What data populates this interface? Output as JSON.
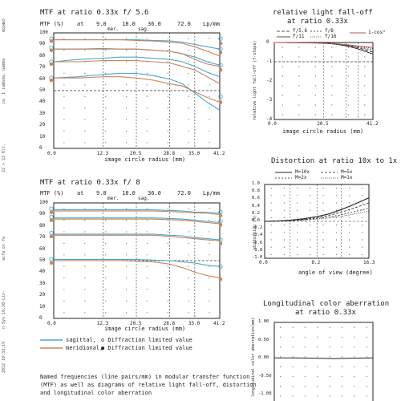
{
  "margin": {
    "top": "ed-",
    "a": "mope",
    "b": "ia. 1 iambda, Gamma",
    "c": "22 > 22 Klr.",
    "d": "acfa on fe",
    "e": "n-Sys 10,20-Lin-",
    "f": "2012 10:33:19"
  },
  "mtf56": {
    "title": "MTF at ratio 0.33x  f/ 5.6",
    "hdr1": "MTF (%)",
    "hdr_at": "at",
    "hdr2": "9.0",
    "hdr3": "18.0",
    "hdr4": "36.0",
    "hdr5": "72.0",
    "hdr6": "Lp/mm",
    "mer": "mer.",
    "sag": "sag.",
    "yticks": [
      "100",
      "90",
      "80",
      "70",
      "60",
      "50",
      "40",
      "30",
      "20",
      "10",
      "0"
    ],
    "xticks": [
      "0.0",
      "12.3",
      "20.5",
      "28.8",
      "35.0",
      "41.2"
    ],
    "xlabel": "image circle radius (mm)"
  },
  "mtf8": {
    "title": "MTF at ratio 0.33x  f/ 8",
    "hdr1": "MTF (%)",
    "hdr_at": "at",
    "hdr2": "9.0",
    "hdr3": "18.0",
    "hdr4": "36.0",
    "hdr5": "72.0",
    "hdr6": "Lp/mm",
    "mer": "mer.",
    "sag": "sag.",
    "yticks": [
      "100",
      "90",
      "80",
      "70",
      "60",
      "50",
      "40",
      "30",
      "20",
      "10",
      "0"
    ],
    "xticks": [
      "0.0",
      "12.3",
      "20.5",
      "28.8",
      "35.0",
      "41.2"
    ],
    "xlabel": "image circle radius (mm)"
  },
  "legend": {
    "sagittal": "sagittal,",
    "sag_diff": "o Diffraction limited value",
    "meridional": "meridional,",
    "mer_diff": "● Diffraction limited value"
  },
  "rlf": {
    "title1": "relative light fall-off",
    "title2": "at ratio 0.33x",
    "leg1": "f/5.6",
    "leg2": "f/8",
    "leg3": "f/11",
    "leg4": "f/16",
    "leg5": "1-cos⁴",
    "ylabel": "relative light fall-off (f-stops)",
    "yticks": [
      "0",
      "-1",
      "-2",
      "-3",
      "-4"
    ],
    "xticks": [
      "0.0",
      "20.5",
      "41.2"
    ],
    "xlabel": "image circle radius (mm)"
  },
  "dist": {
    "title": "Distortion at ratio 10x  to 1x",
    "leg1": "M=10x",
    "leg2": "M=5x",
    "leg3": "M=2x",
    "leg4": "M=1x",
    "ylabel": "distortion (%)",
    "yticks": [
      "1.0",
      "0.8",
      "0.6",
      "0.4",
      "0.2",
      "0.0",
      "-0.2",
      "-0.4",
      "-0.6",
      "-0.8",
      "-1.0"
    ],
    "xticks": [
      "0.0",
      "8.2",
      "16.3"
    ],
    "xlabel": "angle of view (degree)"
  },
  "lca": {
    "title1": "Longitudinal color aberration",
    "title2": "at ratio 0.33x",
    "ylabel": "longitudinal color aberration(mm)",
    "yticks": [
      "1.00",
      "0.50",
      "0.00",
      "-0.50",
      "-1.00"
    ]
  },
  "footer": "Named frequencies (line pairs/mm) in modular transfer function (MTF) as well as diagrams of relative light fall-off, distortion and longitudinal color aberration",
  "colors": {
    "sagittal": "#4aa9c6",
    "meridional": "#c8835a"
  },
  "chart_data": [
    {
      "type": "line",
      "title": "MTF at ratio 0.33x  f/ 5.6",
      "xlabel": "image circle radius (mm)",
      "ylabel": "MTF (%)",
      "xlim": [
        0,
        41.2
      ],
      "ylim": [
        0,
        100
      ],
      "x": [
        0,
        6.2,
        12.3,
        16.4,
        20.5,
        24.7,
        28.8,
        31.9,
        35,
        38.1,
        41.2
      ],
      "series": [
        {
          "name": "sagittal 9.0",
          "kind": "sag",
          "values": [
            94,
            94,
            94,
            94,
            94,
            93.5,
            93,
            92,
            90,
            88,
            86
          ]
        },
        {
          "name": "meridional 9.0",
          "kind": "mer",
          "values": [
            94,
            94,
            94,
            94,
            93.5,
            93,
            92,
            91,
            88,
            84,
            80
          ]
        },
        {
          "name": "sagittal 18.0",
          "kind": "sag",
          "values": [
            86,
            86,
            86,
            86,
            86,
            85,
            84,
            82,
            79,
            75,
            72
          ]
        },
        {
          "name": "meridional 18.0",
          "kind": "mer",
          "values": [
            86,
            86,
            86.5,
            86,
            86,
            85,
            84,
            82,
            77,
            73,
            71
          ]
        },
        {
          "name": "sagittal 36.0",
          "kind": "sag",
          "values": [
            75,
            77,
            78,
            79,
            79,
            78,
            77,
            75,
            71,
            66,
            62
          ]
        },
        {
          "name": "meridional 36.0",
          "kind": "mer",
          "values": [
            75,
            75,
            76,
            76,
            76,
            75,
            74,
            71,
            68,
            62,
            56
          ]
        },
        {
          "name": "sagittal 72.0",
          "kind": "sag",
          "values": [
            61,
            62,
            64,
            65,
            65,
            63,
            60,
            56,
            48,
            40,
            33
          ]
        },
        {
          "name": "meridional 72.0",
          "kind": "mer",
          "values": [
            61,
            61,
            62,
            62,
            61,
            59,
            56,
            54,
            49,
            44,
            40
          ]
        }
      ],
      "diffraction": {
        "sag": [
          95,
          87,
          75,
          61
        ],
        "mer": [
          95,
          87,
          75,
          61
        ],
        "right_sag": [
          95,
          86,
          72,
          45
        ],
        "right_mer": [
          93,
          85,
          70,
          42
        ]
      }
    },
    {
      "type": "line",
      "title": "MTF at ratio 0.33x  f/ 8",
      "xlabel": "image circle radius (mm)",
      "ylabel": "MTF (%)",
      "xlim": [
        0,
        41.2
      ],
      "ylim": [
        0,
        100
      ],
      "x": [
        0,
        6.2,
        12.3,
        16.4,
        20.5,
        24.7,
        28.8,
        31.9,
        35,
        38.1,
        41.2
      ],
      "series": [
        {
          "name": "sagittal 9.0",
          "kind": "sag",
          "values": [
            94,
            94,
            94,
            94,
            94,
            94,
            93.5,
            93,
            92,
            92,
            91
          ]
        },
        {
          "name": "meridional 9.0",
          "kind": "mer",
          "values": [
            93,
            93,
            93,
            93,
            93,
            93,
            92.5,
            92,
            91.5,
            91,
            90
          ]
        },
        {
          "name": "sagittal 18.0",
          "kind": "sag",
          "values": [
            87,
            87,
            87,
            87,
            87,
            87,
            86.5,
            86,
            85,
            84,
            83
          ]
        },
        {
          "name": "meridional 18.0",
          "kind": "mer",
          "values": [
            86,
            86,
            86,
            86,
            86,
            86,
            85.5,
            85,
            84,
            83,
            82
          ]
        },
        {
          "name": "sagittal 36.0",
          "kind": "sag",
          "values": [
            73,
            73,
            73,
            73,
            73,
            73,
            72,
            71.5,
            70,
            69,
            68
          ]
        },
        {
          "name": "meridional 36.0",
          "kind": "mer",
          "values": [
            72,
            72,
            72,
            72,
            72,
            72,
            71,
            70,
            69,
            68,
            67
          ]
        },
        {
          "name": "sagittal 72.0",
          "kind": "sag",
          "values": [
            51,
            51,
            51,
            51,
            51,
            50.5,
            50,
            49,
            48,
            46,
            45
          ]
        },
        {
          "name": "meridional 72.0",
          "kind": "mer",
          "values": [
            50,
            50,
            50,
            50,
            49.5,
            49,
            47,
            44,
            40,
            37,
            35
          ]
        }
      ],
      "diffraction": {
        "sag": [
          95,
          88,
          74,
          51
        ],
        "mer": [
          94,
          87,
          73,
          50
        ],
        "right_sag": [
          92,
          84,
          68,
          45
        ],
        "right_mer": [
          91,
          83,
          67,
          36
        ]
      }
    },
    {
      "type": "line",
      "title": "relative light fall-off at ratio 0.33x",
      "xlabel": "image circle radius (mm)",
      "ylabel": "relative light fall-off (f-stops)",
      "xlim": [
        0,
        41.2
      ],
      "ylim": [
        -4,
        0
      ],
      "x": [
        0,
        10,
        20.5,
        25,
        30,
        35,
        41.2
      ],
      "series": [
        {
          "name": "f/5.6",
          "values": [
            0,
            -0.01,
            -0.03,
            -0.08,
            -0.17,
            -0.33,
            -0.6
          ]
        },
        {
          "name": "f/8",
          "values": [
            0,
            -0.01,
            -0.03,
            -0.07,
            -0.14,
            -0.27,
            -0.5
          ]
        },
        {
          "name": "f/11",
          "values": [
            0,
            -0.01,
            -0.03,
            -0.06,
            -0.12,
            -0.22,
            -0.4
          ]
        },
        {
          "name": "f/16",
          "values": [
            0,
            -0.01,
            -0.02,
            -0.05,
            -0.1,
            -0.18,
            -0.32
          ]
        },
        {
          "name": "1-cos⁴",
          "values": [
            0,
            -0.01,
            -0.04,
            -0.07,
            -0.12,
            -0.18,
            -0.26
          ]
        }
      ]
    },
    {
      "type": "line",
      "title": "Distortion at ratio 10x  to 1x",
      "xlabel": "angle of view (degree)",
      "ylabel": "distortion (%)",
      "xlim": [
        0,
        16.3
      ],
      "ylim": [
        -1,
        1
      ],
      "x": [
        0,
        2,
        4,
        6,
        8.2,
        10,
        12,
        14,
        16.3
      ],
      "series": [
        {
          "name": "M=10x",
          "values": [
            0,
            0.01,
            0.03,
            0.07,
            0.13,
            0.2,
            0.32,
            0.46,
            0.64
          ]
        },
        {
          "name": "M=5x",
          "values": [
            0,
            0.01,
            0.02,
            0.05,
            0.1,
            0.16,
            0.25,
            0.36,
            0.5
          ]
        },
        {
          "name": "M=2x",
          "values": [
            0,
            0.01,
            0.02,
            0.04,
            0.08,
            0.12,
            0.18,
            0.26,
            0.36
          ]
        },
        {
          "name": "M=1x",
          "values": [
            0,
            0.005,
            0.015,
            0.03,
            0.06,
            0.09,
            0.14,
            0.2,
            0.28
          ]
        }
      ]
    },
    {
      "type": "line",
      "title": "Longitudinal color aberration at ratio 0.33x",
      "ylabel": "longitudinal color aberration(mm)",
      "ylim": [
        -1,
        1
      ],
      "x": [
        0,
        0.2,
        0.4,
        0.6,
        0.8,
        1.0
      ],
      "series": [
        {
          "name": "lca",
          "values": [
            0.02,
            0.02,
            0.01,
            0.0,
            0.01,
            0.02
          ]
        }
      ]
    }
  ]
}
